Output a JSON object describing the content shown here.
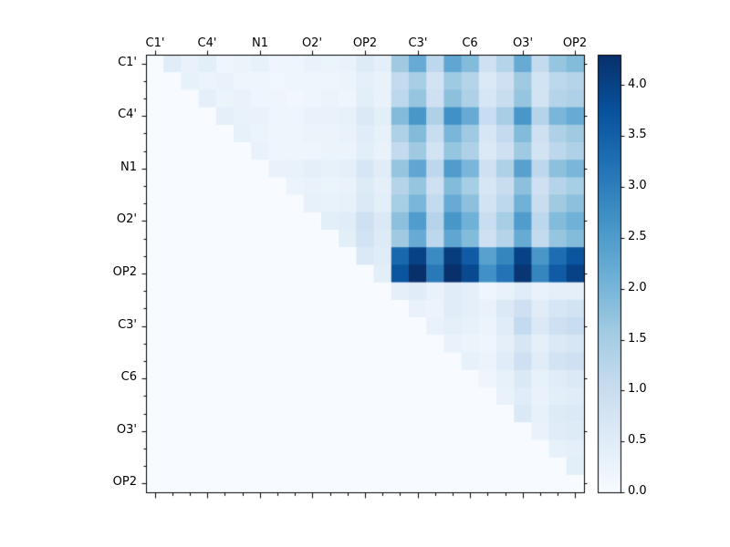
{
  "chart_data": {
    "type": "heatmap",
    "title": "",
    "n": 25,
    "x_labels": [
      "C1'",
      "C4'",
      "N1",
      "O2'",
      "OP2",
      "C3'",
      "C6",
      "O3'",
      "OP2"
    ],
    "y_labels": [
      "C1'",
      "C4'",
      "N1",
      "O2'",
      "OP2",
      "C3'",
      "C6",
      "O3'",
      "OP2"
    ],
    "label_positions": [
      0,
      3,
      6,
      9,
      12,
      15,
      18,
      21,
      24
    ],
    "vmin": 0.0,
    "vmax": 4.3,
    "colormap": "Blues",
    "colormap_stops": [
      "#f7fbff",
      "#deebf7",
      "#c6dbef",
      "#9ecae1",
      "#6baed6",
      "#4292c6",
      "#2171b5",
      "#08519c",
      "#08306b"
    ],
    "colorbar": {
      "ticks": [
        0.0,
        0.5,
        1.0,
        1.5,
        2.0,
        2.5,
        3.0,
        3.5,
        4.0
      ],
      "tick_labels": [
        "0.0",
        "0.5",
        "1.0",
        "1.5",
        "2.0",
        "2.5",
        "3.0",
        "3.5",
        "4.0"
      ],
      "position": "right"
    },
    "grid": false,
    "matrix": [
      [
        0,
        0.5,
        0.3,
        0.45,
        0.2,
        0.25,
        0.35,
        0.2,
        0.2,
        0.3,
        0.25,
        0.3,
        0.55,
        0.4,
        1.6,
        2.2,
        1.2,
        2.3,
        1.9,
        0.9,
        1.3,
        2.2,
        1.1,
        1.7,
        1.9
      ],
      [
        0,
        0,
        0.35,
        0.25,
        0.3,
        0.2,
        0.2,
        0.15,
        0.2,
        0.2,
        0.2,
        0.25,
        0.4,
        0.3,
        1.1,
        1.5,
        0.8,
        1.6,
        1.3,
        0.6,
        0.9,
        1.6,
        0.8,
        1.2,
        1.3
      ],
      [
        0,
        0,
        0,
        0.4,
        0.25,
        0.3,
        0.2,
        0.2,
        0.15,
        0.2,
        0.25,
        0.2,
        0.45,
        0.3,
        1.2,
        1.7,
        0.9,
        1.8,
        1.4,
        0.7,
        1.0,
        1.7,
        0.8,
        1.3,
        1.4
      ],
      [
        0,
        0,
        0,
        0,
        0.4,
        0.3,
        0.3,
        0.2,
        0.2,
        0.3,
        0.3,
        0.35,
        0.6,
        0.45,
        1.9,
        2.6,
        1.4,
        2.7,
        2.2,
        1.0,
        1.5,
        2.6,
        1.3,
        2.0,
        2.2
      ],
      [
        0,
        0,
        0,
        0,
        0,
        0.35,
        0.25,
        0.2,
        0.2,
        0.25,
        0.25,
        0.3,
        0.5,
        0.35,
        1.4,
        1.9,
        1.0,
        2.0,
        1.6,
        0.7,
        1.1,
        1.9,
        0.9,
        1.4,
        1.6
      ],
      [
        0,
        0,
        0,
        0,
        0,
        0,
        0.3,
        0.2,
        0.2,
        0.2,
        0.25,
        0.25,
        0.45,
        0.3,
        1.1,
        1.6,
        0.8,
        1.7,
        1.4,
        0.6,
        0.9,
        1.6,
        0.8,
        1.2,
        1.4
      ],
      [
        0,
        0,
        0,
        0,
        0,
        0,
        0,
        0.3,
        0.3,
        0.4,
        0.35,
        0.4,
        0.7,
        0.5,
        1.7,
        2.3,
        1.2,
        2.5,
        2.0,
        0.9,
        1.4,
        2.4,
        1.2,
        1.8,
        2.0
      ],
      [
        0,
        0,
        0,
        0,
        0,
        0,
        0,
        0,
        0.25,
        0.3,
        0.25,
        0.3,
        0.55,
        0.4,
        1.3,
        1.7,
        0.9,
        1.9,
        1.5,
        0.7,
        1.0,
        1.8,
        0.9,
        1.3,
        1.5
      ],
      [
        0,
        0,
        0,
        0,
        0,
        0,
        0,
        0,
        0,
        0.35,
        0.3,
        0.35,
        0.6,
        0.45,
        1.5,
        2.0,
        1.1,
        2.2,
        1.8,
        0.8,
        1.2,
        2.1,
        1.0,
        1.6,
        1.8
      ],
      [
        0,
        0,
        0,
        0,
        0,
        0,
        0,
        0,
        0,
        0,
        0.45,
        0.5,
        0.9,
        0.6,
        1.8,
        2.5,
        1.3,
        2.6,
        2.1,
        1.0,
        1.5,
        2.5,
        1.2,
        1.9,
        2.1
      ],
      [
        0,
        0,
        0,
        0,
        0,
        0,
        0,
        0,
        0,
        0,
        0,
        0.45,
        0.8,
        0.55,
        1.6,
        2.2,
        1.2,
        2.3,
        1.9,
        0.9,
        1.3,
        2.2,
        1.1,
        1.7,
        1.9
      ],
      [
        0,
        0,
        0,
        0,
        0,
        0,
        0,
        0,
        0,
        0,
        0,
        0,
        0.6,
        0.5,
        3.4,
        4.0,
        2.8,
        4.1,
        3.6,
        2.4,
        2.9,
        4.0,
        2.6,
        3.3,
        3.7
      ],
      [
        0,
        0,
        0,
        0,
        0,
        0,
        0,
        0,
        0,
        0,
        0,
        0,
        0,
        0.45,
        3.7,
        4.3,
        3.1,
        4.3,
        3.9,
        2.7,
        3.2,
        4.2,
        2.9,
        3.6,
        4.0
      ],
      [
        0,
        0,
        0,
        0,
        0,
        0,
        0,
        0,
        0,
        0,
        0,
        0,
        0,
        0,
        0.4,
        0.5,
        0.3,
        0.5,
        0.4,
        0.2,
        0.3,
        0.5,
        0.3,
        0.4,
        0.4
      ],
      [
        0,
        0,
        0,
        0,
        0,
        0,
        0,
        0,
        0,
        0,
        0,
        0,
        0,
        0,
        0,
        0.3,
        0.25,
        0.5,
        0.4,
        0.3,
        0.6,
        0.9,
        0.5,
        0.7,
        0.8
      ],
      [
        0,
        0,
        0,
        0,
        0,
        0,
        0,
        0,
        0,
        0,
        0,
        0,
        0,
        0,
        0,
        0,
        0.3,
        0.4,
        0.35,
        0.25,
        0.5,
        1.1,
        0.6,
        0.9,
        1.0
      ],
      [
        0,
        0,
        0,
        0,
        0,
        0,
        0,
        0,
        0,
        0,
        0,
        0,
        0,
        0,
        0,
        0,
        0,
        0.3,
        0.25,
        0.2,
        0.4,
        0.7,
        0.4,
        0.6,
        0.7
      ],
      [
        0,
        0,
        0,
        0,
        0,
        0,
        0,
        0,
        0,
        0,
        0,
        0,
        0,
        0,
        0,
        0,
        0,
        0,
        0.35,
        0.25,
        0.5,
        0.9,
        0.5,
        0.8,
        0.9
      ],
      [
        0,
        0,
        0,
        0,
        0,
        0,
        0,
        0,
        0,
        0,
        0,
        0,
        0,
        0,
        0,
        0,
        0,
        0,
        0,
        0.2,
        0.35,
        0.6,
        0.35,
        0.5,
        0.6
      ],
      [
        0,
        0,
        0,
        0,
        0,
        0,
        0,
        0,
        0,
        0,
        0,
        0,
        0,
        0,
        0,
        0,
        0,
        0,
        0,
        0,
        0.3,
        0.5,
        0.3,
        0.45,
        0.5
      ],
      [
        0,
        0,
        0,
        0,
        0,
        0,
        0,
        0,
        0,
        0,
        0,
        0,
        0,
        0,
        0,
        0,
        0,
        0,
        0,
        0,
        0,
        0.6,
        0.35,
        0.55,
        0.6
      ],
      [
        0,
        0,
        0,
        0,
        0,
        0,
        0,
        0,
        0,
        0,
        0,
        0,
        0,
        0,
        0,
        0,
        0,
        0,
        0,
        0,
        0,
        0,
        0.3,
        0.5,
        0.55
      ],
      [
        0,
        0,
        0,
        0,
        0,
        0,
        0,
        0,
        0,
        0,
        0,
        0,
        0,
        0,
        0,
        0,
        0,
        0,
        0,
        0,
        0,
        0,
        0,
        0.35,
        0.4
      ],
      [
        0,
        0,
        0,
        0,
        0,
        0,
        0,
        0,
        0,
        0,
        0,
        0,
        0,
        0,
        0,
        0,
        0,
        0,
        0,
        0,
        0,
        0,
        0,
        0,
        0.45
      ],
      [
        0,
        0,
        0,
        0,
        0,
        0,
        0,
        0,
        0,
        0,
        0,
        0,
        0,
        0,
        0,
        0,
        0,
        0,
        0,
        0,
        0,
        0,
        0,
        0,
        0
      ]
    ]
  }
}
